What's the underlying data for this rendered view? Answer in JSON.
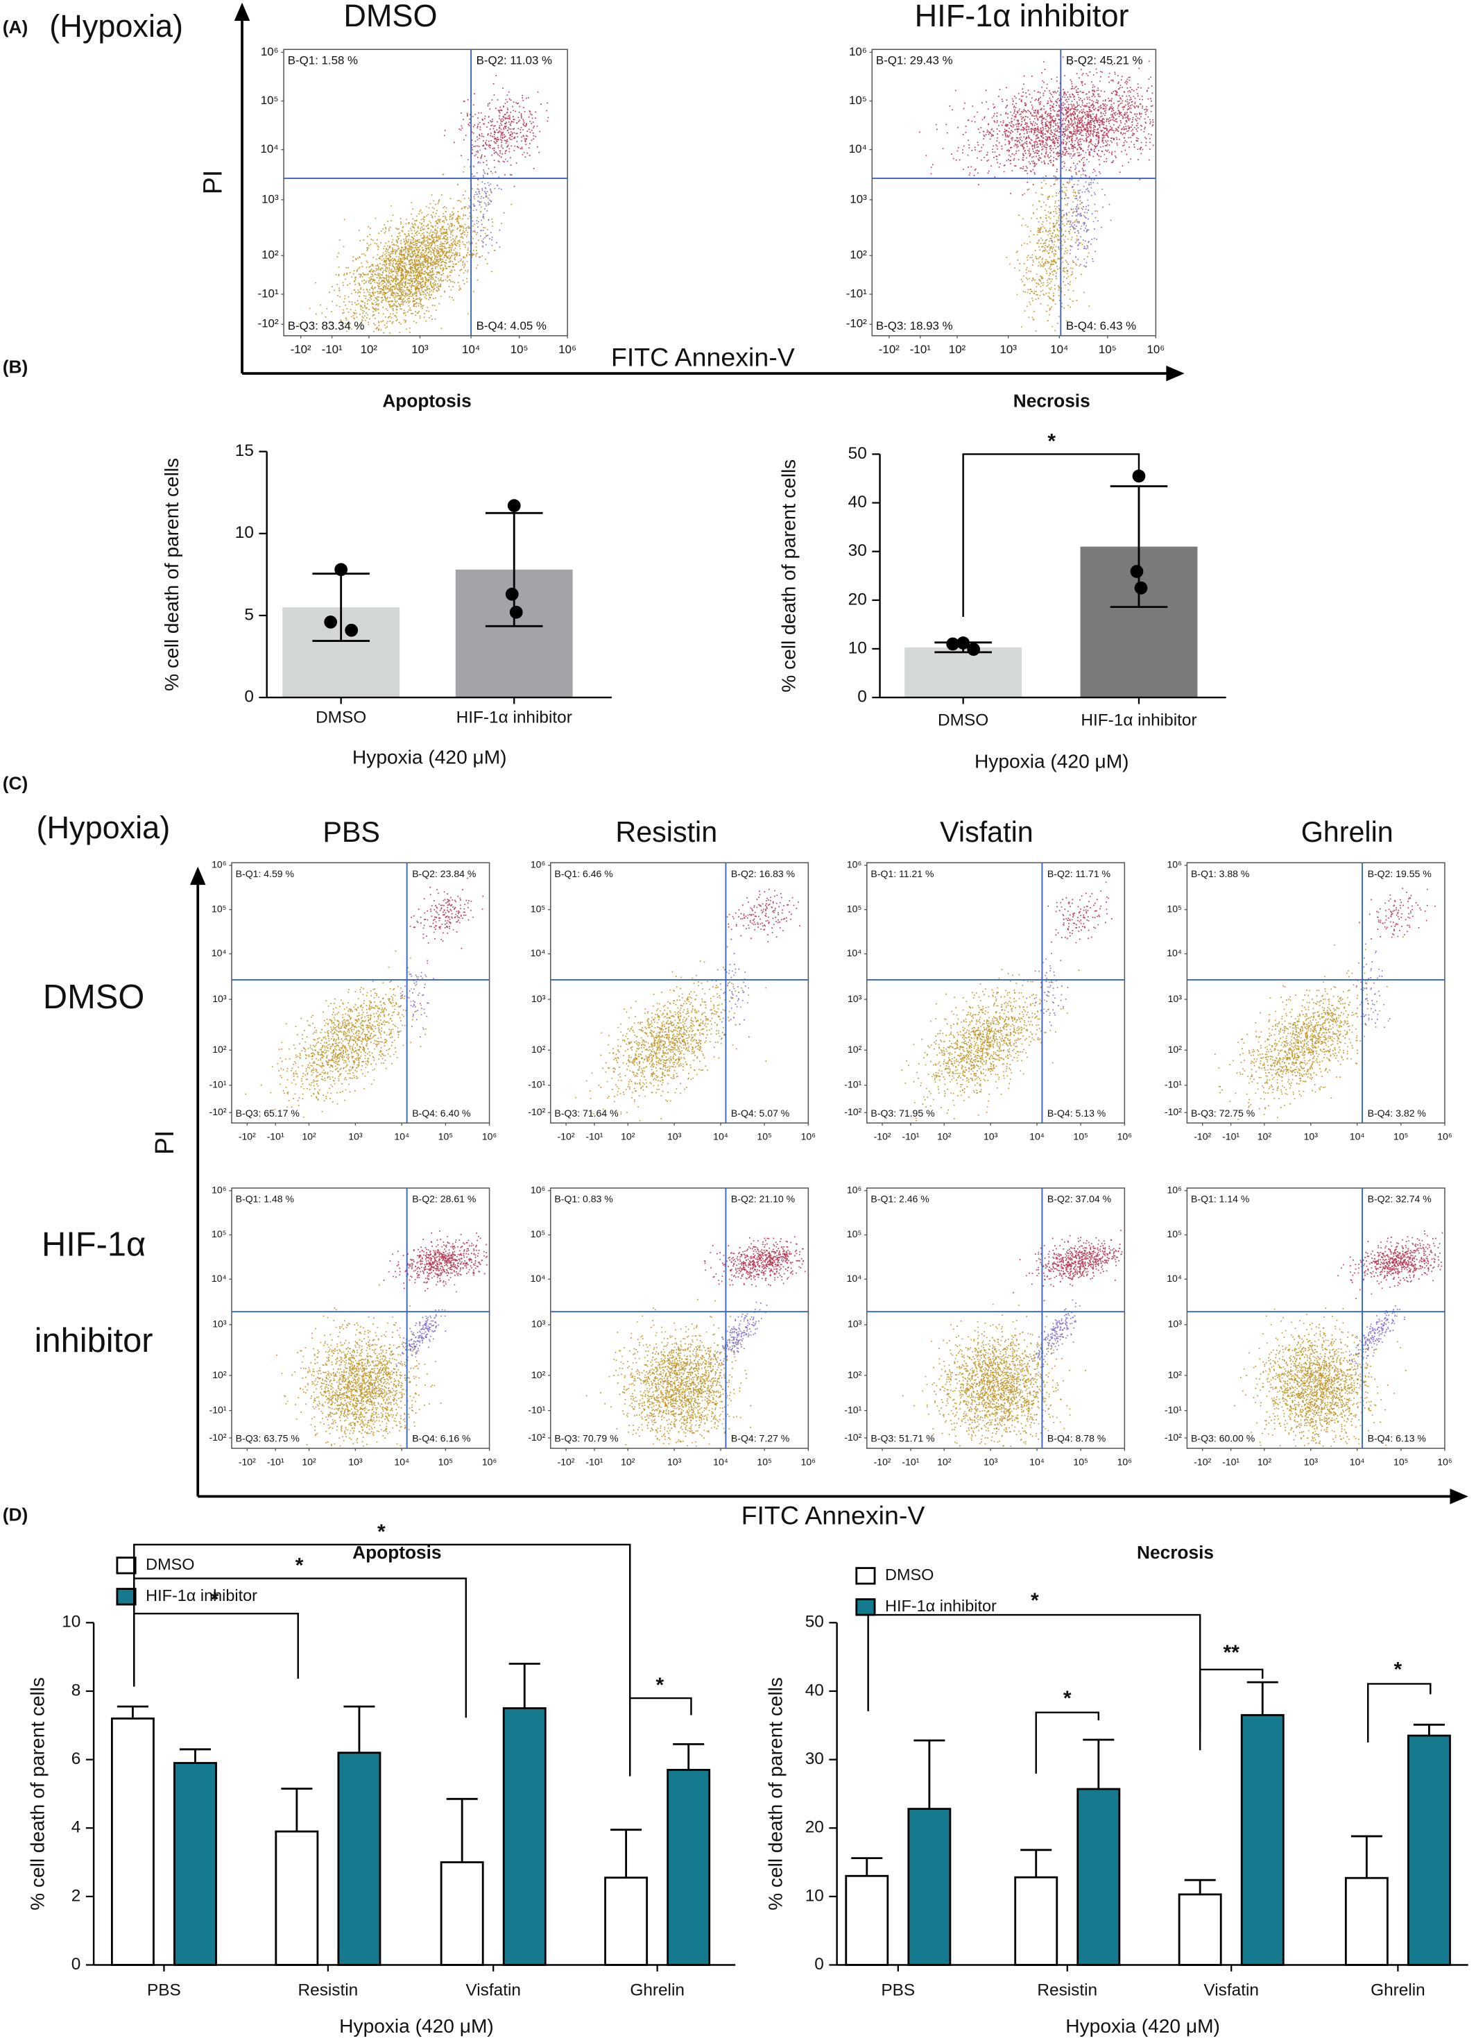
{
  "panel_labels": [
    "(A)",
    "(B)",
    "(C)",
    "(D)"
  ],
  "flow_axis": {
    "xticks": [
      "-10²",
      "-10¹",
      "10²",
      "10³",
      "10⁴",
      "10⁵",
      "10⁶"
    ],
    "yticks": [
      "10⁶",
      "10⁵",
      "10⁴",
      "10³",
      "10²",
      "-10¹",
      "-10²"
    ]
  },
  "panel_a": {
    "condition": "(Hypoxia)",
    "y_axis_label": "PI",
    "x_axis_label": "FITC Annexin-V",
    "plots": [
      {
        "title": "DMSO",
        "quadrants": [
          "B-Q1: 1.58 %",
          "B-Q2: 11.03 %",
          "B-Q3: 83.34 %",
          "B-Q4: 4.05 %"
        ]
      },
      {
        "title": "HIF-1α inhibitor",
        "quadrants": [
          "B-Q1: 29.43 %",
          "B-Q2: 45.21 %",
          "B-Q3: 18.93 %",
          "B-Q4: 6.43 %"
        ]
      }
    ]
  },
  "panel_c": {
    "condition": "(Hypoxia)",
    "columns": [
      "PBS",
      "Resistin",
      "Visfatin",
      "Ghrelin"
    ],
    "rows": [
      [
        "DMSO"
      ],
      [
        "HIF-1α",
        "inhibitor"
      ]
    ],
    "y_axis_label": "PI",
    "x_axis_label": "FITC Annexin-V",
    "plots": [
      [
        {
          "quadrants": [
            "B-Q1: 4.59 %",
            "B-Q2: 23.84 %",
            "B-Q3: 65.17 %",
            "B-Q4: 6.40 %"
          ]
        },
        {
          "quadrants": [
            "B-Q1: 6.46 %",
            "B-Q2: 16.83 %",
            "B-Q3: 71.64 %",
            "B-Q4: 5.07 %"
          ]
        },
        {
          "quadrants": [
            "B-Q1: 11.21 %",
            "B-Q2: 11.71 %",
            "B-Q3: 71.95 %",
            "B-Q4: 5.13 %"
          ]
        },
        {
          "quadrants": [
            "B-Q1: 3.88 %",
            "B-Q2: 19.55 %",
            "B-Q3: 72.75 %",
            "B-Q4: 3.82 %"
          ]
        }
      ],
      [
        {
          "quadrants": [
            "B-Q1: 1.48 %",
            "B-Q2: 28.61 %",
            "B-Q3: 63.75 %",
            "B-Q4: 6.16 %"
          ]
        },
        {
          "quadrants": [
            "B-Q1: 0.83 %",
            "B-Q2: 21.10 %",
            "B-Q3: 70.79 %",
            "B-Q4: 7.27 %"
          ]
        },
        {
          "quadrants": [
            "B-Q1: 2.46 %",
            "B-Q2: 37.04 %",
            "B-Q3: 51.71 %",
            "B-Q4: 8.78 %"
          ]
        },
        {
          "quadrants": [
            "B-Q1: 1.14 %",
            "B-Q2: 32.74 %",
            "B-Q3: 60.00 %",
            "B-Q4: 6.13 %"
          ]
        }
      ]
    ]
  },
  "chart_data": [
    {
      "type": "bar",
      "title": "Apoptosis",
      "categories": [
        "DMSO",
        "HIF-1α inhibitor"
      ],
      "values": [
        5.5,
        7.8
      ],
      "errors": [
        2.05,
        3.45
      ],
      "points": [
        [
          7.8,
          4.6,
          4.1
        ],
        [
          11.7,
          6.3,
          5.2
        ]
      ],
      "colors": [
        "#d3d6d6",
        "#a3a3a9"
      ],
      "ylabel": "% cell death of parent cells",
      "xlabel": "Hypoxia (420 μM)",
      "ylim": [
        0,
        15
      ],
      "yticks": [
        0,
        5,
        10,
        15
      ]
    },
    {
      "type": "bar",
      "title": "Necrosis",
      "categories": [
        "DMSO",
        "HIF-1α inhibitor"
      ],
      "values": [
        10.3,
        31.0
      ],
      "errors": [
        1.0,
        12.4
      ],
      "points": [
        [
          11.2,
          11.0,
          9.9
        ],
        [
          45.5,
          25.9,
          22.5
        ]
      ],
      "colors": [
        "#d6d9d9",
        "#7a7a7a"
      ],
      "ylabel": "% cell death of parent cells",
      "xlabel": "Hypoxia (420 μM)",
      "ylim": [
        0,
        50
      ],
      "yticks": [
        0,
        10,
        20,
        30,
        40,
        50
      ],
      "annotations": [
        "*"
      ]
    },
    {
      "type": "grouped_bar",
      "title": "Apoptosis",
      "categories": [
        "PBS",
        "Resistin",
        "Visfatin",
        "Ghrelin"
      ],
      "series": [
        {
          "name": "DMSO",
          "color": "#ffffff",
          "values": [
            7.2,
            3.9,
            3.0,
            2.55
          ],
          "errors": [
            0.35,
            1.25,
            1.85,
            1.4
          ]
        },
        {
          "name": "HIF-1α inhibitor",
          "color": "#167a8e",
          "values": [
            5.9,
            6.2,
            7.5,
            5.7
          ],
          "errors": [
            0.4,
            1.35,
            1.3,
            0.75
          ]
        }
      ],
      "ylabel": "% cell death of parent cells",
      "xlabel": "Hypoxia (420 μM)",
      "ylim": [
        0,
        10
      ],
      "yticks": [
        0,
        2,
        4,
        6,
        8,
        10
      ],
      "annotations": [
        "*",
        "*",
        "*",
        "*"
      ]
    },
    {
      "type": "grouped_bar",
      "title": "Necrosis",
      "categories": [
        "PBS",
        "Resistin",
        "Visfatin",
        "Ghrelin"
      ],
      "series": [
        {
          "name": "DMSO",
          "color": "#ffffff",
          "values": [
            13.0,
            12.8,
            10.3,
            12.7
          ],
          "errors": [
            2.6,
            4.0,
            2.1,
            6.1
          ]
        },
        {
          "name": "HIF-1α inhibitor",
          "color": "#167a8e",
          "values": [
            22.8,
            25.7,
            36.5,
            33.5
          ],
          "errors": [
            10.0,
            7.2,
            4.8,
            1.6
          ]
        }
      ],
      "ylabel": "% cell death of parent cells",
      "xlabel": "Hypoxia (420 μM)",
      "ylim": [
        0,
        50
      ],
      "yticks": [
        0,
        10,
        20,
        30,
        40,
        50
      ],
      "annotations": [
        "*",
        "*",
        "**",
        "*"
      ]
    }
  ]
}
